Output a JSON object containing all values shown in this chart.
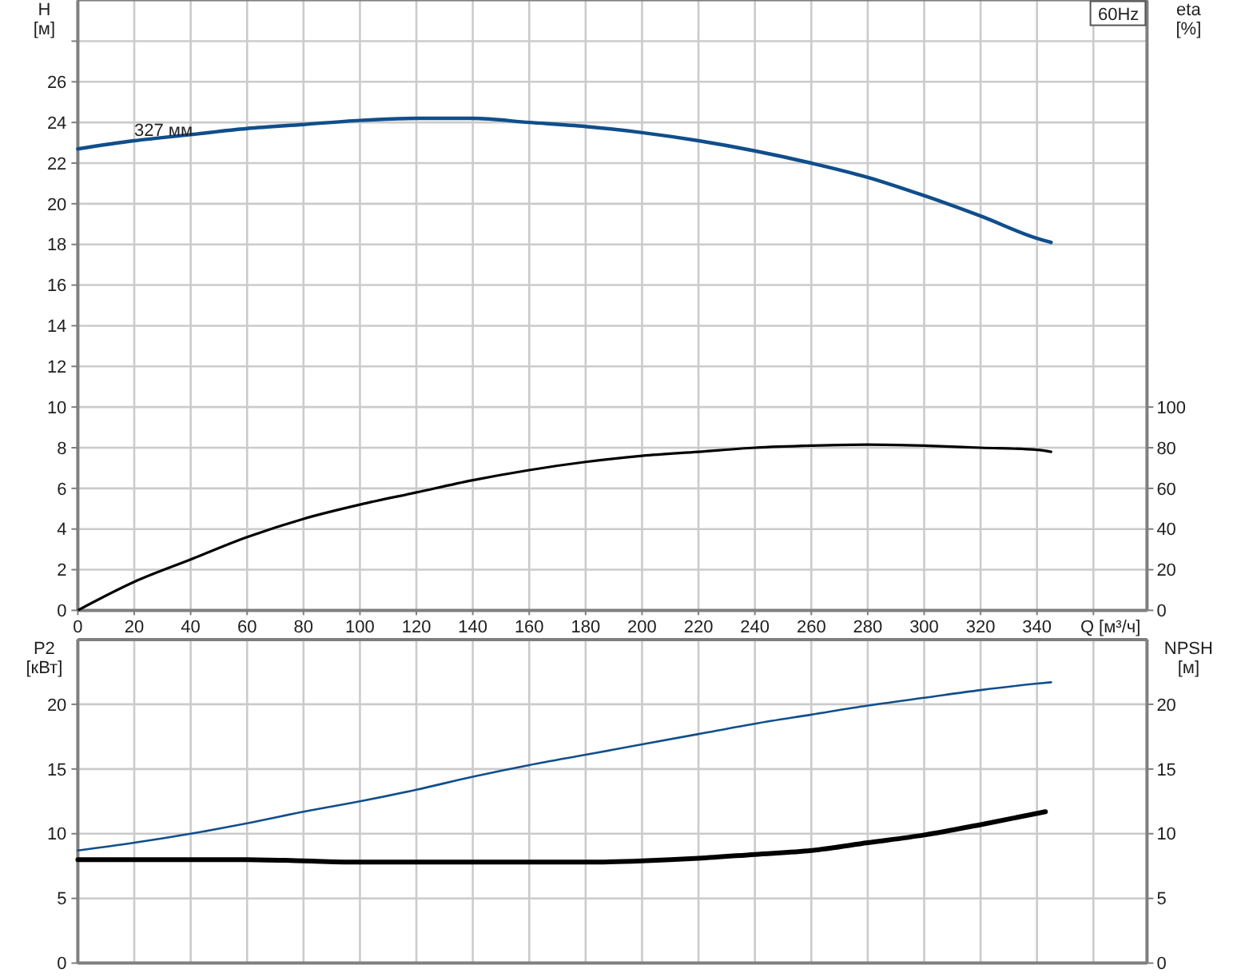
{
  "chart_data": [
    {
      "type": "line",
      "title": "60Hz",
      "xlabel": "Q [м³/ч]",
      "ylabel": "H [м]",
      "y2label": "eta [%]",
      "xlim": [
        0,
        379
      ],
      "xticks": [
        0,
        20,
        40,
        60,
        80,
        100,
        120,
        140,
        160,
        180,
        200,
        220,
        240,
        260,
        280,
        300,
        320,
        340,
        {
          "value": 360,
          "label": null
        }
      ],
      "ylim": [
        0,
        30
      ],
      "yticks": [
        0,
        2,
        4,
        6,
        8,
        10,
        12,
        14,
        16,
        18,
        20,
        22,
        24,
        26,
        {
          "value": 28,
          "label": null
        }
      ],
      "y2lim": [
        0,
        300
      ],
      "y2ticks": [
        0,
        20,
        40,
        60,
        80,
        100
      ],
      "grid": true,
      "annotations": [
        {
          "text": "327 мм",
          "x": 20,
          "y": 23.1
        }
      ],
      "x": [
        0,
        20,
        40,
        60,
        80,
        100,
        120,
        140,
        160,
        180,
        200,
        220,
        240,
        260,
        280,
        300,
        320,
        340,
        345
      ],
      "series": [
        {
          "color": "#104e8b",
          "values": [
            22.7,
            23.1,
            23.4,
            23.7,
            23.9,
            24.1,
            24.2,
            24.2,
            24.0,
            23.8,
            23.5,
            23.1,
            22.6,
            22.0,
            21.3,
            20.4,
            19.4,
            18.3,
            18.1
          ]
        },
        {
          "color": "#000000",
          "axis": "y2",
          "values": [
            0,
            14,
            25,
            36,
            45,
            52,
            58,
            64,
            69,
            73,
            76,
            78,
            80,
            81,
            81.5,
            81,
            80,
            79,
            78
          ]
        }
      ]
    },
    {
      "type": "line",
      "ylabel": "P2 [кВт]",
      "y2label": "NPSH [м]",
      "xlim": [
        0,
        379
      ],
      "xticks": [
        0,
        20,
        40,
        60,
        80,
        100,
        120,
        140,
        160,
        180,
        200,
        220,
        240,
        260,
        280,
        300,
        320,
        340,
        360
      ],
      "ylim": [
        0,
        25
      ],
      "yticks": [
        0,
        5,
        10,
        15,
        20
      ],
      "y2lim": [
        0,
        25
      ],
      "y2ticks": [
        0,
        5,
        10,
        15,
        20
      ],
      "tick_labels": "y",
      "grid": true,
      "series": [
        {
          "color": "#104e8b",
          "x": [
            0,
            20,
            40,
            60,
            80,
            100,
            120,
            140,
            160,
            180,
            200,
            220,
            240,
            260,
            280,
            300,
            320,
            340,
            345
          ],
          "values": [
            8.7,
            9.3,
            10.0,
            10.8,
            11.7,
            12.5,
            13.4,
            14.4,
            15.3,
            16.1,
            16.9,
            17.7,
            18.5,
            19.2,
            19.9,
            20.5,
            21.1,
            21.6,
            21.7
          ]
        },
        {
          "color": "#000000",
          "axis": "y2",
          "x": [
            0,
            32,
            40,
            60,
            80,
            100,
            120,
            140,
            160,
            180,
            200,
            220,
            240,
            260,
            280,
            300,
            320,
            343
          ],
          "values": [
            8.0,
            8.0,
            8.0,
            8.0,
            7.9,
            7.8,
            7.8,
            7.8,
            7.8,
            7.8,
            7.9,
            8.1,
            8.4,
            8.7,
            9.3,
            9.9,
            10.7,
            11.7
          ]
        }
      ]
    }
  ]
}
